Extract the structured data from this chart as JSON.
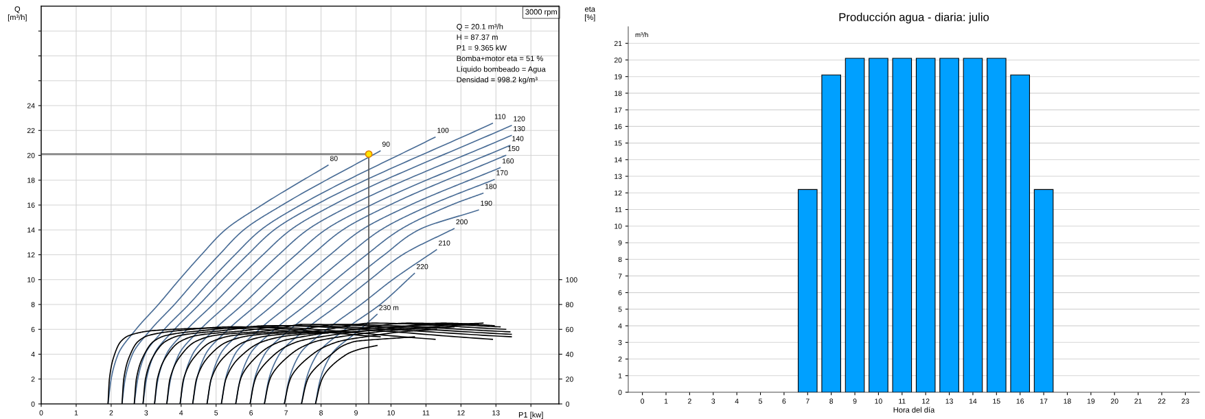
{
  "chart_data": [
    {
      "type": "line",
      "xlabel": "P1 [kw]",
      "ylabel": "Q\n[m³/h]",
      "y2label": "eta\n[%]",
      "xlim": [
        0,
        14.8
      ],
      "ylim": [
        0,
        32
      ],
      "y2lim": [
        0,
        320
      ],
      "xticks": [
        0,
        1,
        2,
        3,
        4,
        5,
        6,
        7,
        8,
        9,
        10,
        11,
        12,
        13,
        {
          "value": 14,
          "label": null
        }
      ],
      "yticks": [
        0,
        2,
        4,
        6,
        8,
        10,
        12,
        14,
        16,
        18,
        20,
        22,
        24,
        {
          "value": 26,
          "label": null
        },
        {
          "value": 28,
          "label": null
        },
        {
          "value": 30,
          "label": null
        }
      ],
      "y2ticks": [
        0,
        20,
        40,
        60,
        80,
        100
      ],
      "grid": true,
      "annotations": [
        "3000 rpm",
        "Q = 20.1 m³/h",
        "H = 87.37 m",
        "P1 = 9.365 kW",
        "Bomba+motor eta = 51 %",
        "Líquido bombeado = Agua",
        "Densidad = 998.2 kg/m³"
      ],
      "series": [
        {
          "name": "80",
          "color": "#4a6d96",
          "x": [
            1.91,
            2.0,
            2.2,
            2.71,
            3.35,
            3.95,
            4.58,
            5.26,
            6.31,
            8.2
          ],
          "values": [
            0,
            2,
            4,
            6,
            8,
            10,
            12,
            14,
            16,
            19.2
          ]
        },
        {
          "name": "90",
          "color": "#4a6d96",
          "x": [
            2.31,
            2.4,
            2.61,
            3.14,
            3.81,
            4.43,
            5.09,
            5.79,
            6.89,
            9.69
          ],
          "values": [
            0,
            2,
            4,
            6,
            8,
            10,
            12,
            14,
            16,
            20.35
          ]
        },
        {
          "name": "100",
          "color": "#4a6d96",
          "x": [
            2.66,
            2.76,
            2.97,
            3.52,
            4.22,
            4.86,
            5.54,
            6.28,
            7.41,
            11.26
          ],
          "values": [
            0,
            2,
            4,
            6,
            8,
            10,
            12,
            14,
            16,
            21.46
          ]
        },
        {
          "name": "110",
          "color": "#4a6d96",
          "x": [
            2.91,
            3.01,
            3.23,
            3.81,
            4.52,
            5.19,
            5.9,
            6.66,
            7.84,
            12.9
          ],
          "values": [
            0,
            2,
            4,
            6,
            8,
            10,
            12,
            14,
            16,
            22.57
          ]
        },
        {
          "name": "120",
          "color": "#4a6d96",
          "x": [
            3.24,
            3.34,
            3.58,
            4.17,
            4.91,
            5.61,
            6.34,
            7.13,
            8.34,
            13.44
          ],
          "values": [
            0,
            2,
            4,
            6,
            8,
            10,
            12,
            14,
            16,
            22.4
          ]
        },
        {
          "name": "130",
          "color": "#4a6d96",
          "x": [
            3.59,
            3.7,
            3.94,
            4.55,
            5.32,
            6.04,
            6.79,
            7.61,
            8.87,
            13.44
          ],
          "values": [
            0,
            2,
            4,
            6,
            8,
            10,
            12,
            14,
            16,
            21.6
          ]
        },
        {
          "name": "140",
          "color": "#4a6d96",
          "x": [
            3.97,
            4.08,
            4.33,
            4.96,
            5.76,
            6.5,
            7.28,
            8.12,
            9.43,
            13.4
          ],
          "values": [
            0,
            2,
            4,
            6,
            8,
            10,
            12,
            14,
            16,
            20.8
          ]
        },
        {
          "name": "150",
          "color": "#4a6d96",
          "x": [
            4.33,
            4.45,
            4.7,
            5.35,
            6.17,
            6.94,
            7.75,
            8.62,
            9.96,
            13.28
          ],
          "values": [
            0,
            2,
            4,
            6,
            8,
            10,
            12,
            14,
            16,
            20.0
          ]
        },
        {
          "name": "160",
          "color": "#4a6d96",
          "x": [
            4.74,
            4.86,
            5.12,
            5.8,
            6.64,
            7.43,
            8.26,
            9.16,
            10.55,
            13.12
          ],
          "values": [
            0,
            2,
            4,
            6,
            8,
            10,
            12,
            14,
            16,
            19.0
          ]
        },
        {
          "name": "170",
          "color": "#4a6d96",
          "x": [
            5.15,
            5.27,
            5.54,
            6.24,
            7.11,
            7.92,
            8.78,
            9.71,
            11.13,
            12.95
          ],
          "values": [
            0,
            2,
            4,
            6,
            8,
            10,
            12,
            14,
            16,
            18.05
          ]
        },
        {
          "name": "180",
          "color": "#4a6d96",
          "x": [
            5.56,
            5.69,
            5.97,
            6.68,
            7.58,
            8.42,
            9.3,
            10.25,
            11.72,
            12.63
          ],
          "values": [
            0,
            2,
            4,
            6,
            8,
            10,
            12,
            14,
            16,
            16.95
          ]
        },
        {
          "name": "190",
          "color": "#4a6d96",
          "x": [
            5.97,
            6.1,
            6.39,
            7.12,
            8.04,
            8.91,
            9.81,
            10.79,
            12.5
          ],
          "values": [
            0,
            2,
            4,
            6,
            8,
            10,
            12,
            14,
            15.6
          ]
        },
        {
          "name": "200",
          "color": "#4a6d96",
          "x": [
            6.38,
            6.51,
            6.81,
            7.56,
            8.51,
            9.4,
            10.33,
            11.8
          ],
          "values": [
            0,
            2,
            4,
            6,
            8,
            10,
            12,
            14.1
          ]
        },
        {
          "name": "210",
          "color": "#4a6d96",
          "x": [
            6.95,
            7.09,
            7.39,
            8.17,
            9.14,
            10.05,
            11.3
          ],
          "values": [
            0,
            2,
            4,
            6,
            8,
            10,
            12.4
          ]
        },
        {
          "name": "220",
          "color": "#4a6d96",
          "x": [
            7.44,
            7.58,
            7.89,
            8.69,
            9.69,
            10.67
          ],
          "values": [
            0,
            2,
            4,
            6,
            8,
            10.5
          ]
        },
        {
          "name": "230 m",
          "color": "#4a6d96",
          "x": [
            7.84,
            7.98,
            8.3,
            9.12,
            9.6
          ],
          "values": [
            0,
            2,
            4,
            6,
            7.2
          ]
        },
        {
          "axis": "y2",
          "color": "#000000",
          "x": [
            1.91,
            1.95,
            2.1,
            2.27,
            2.51,
            3.21,
            5.0,
            8.2
          ],
          "values": [
            0,
            20,
            40,
            50,
            55,
            59,
            61,
            57
          ]
        },
        {
          "axis": "y2",
          "color": "#000000",
          "x": [
            2.31,
            2.36,
            2.55,
            2.76,
            3.06,
            3.94,
            5.5,
            9.69
          ],
          "values": [
            0,
            20,
            40,
            50,
            55,
            59,
            62,
            54
          ]
        },
        {
          "axis": "y2",
          "color": "#000000",
          "x": [
            2.66,
            2.72,
            2.95,
            3.2,
            3.56,
            4.61,
            6.0,
            11.26
          ],
          "values": [
            0,
            20,
            40,
            50,
            55,
            59,
            62,
            52
          ]
        },
        {
          "axis": "y2",
          "color": "#000000",
          "x": [
            2.91,
            2.98,
            3.24,
            3.54,
            3.96,
            5.19,
            6.5,
            12.9
          ],
          "values": [
            0,
            20,
            40,
            50,
            55,
            59,
            63,
            52
          ]
        },
        {
          "axis": "y2",
          "color": "#000000",
          "x": [
            3.24,
            3.32,
            3.62,
            3.96,
            4.44,
            5.84,
            7.0,
            13.44
          ],
          "values": [
            0,
            20,
            40,
            50,
            55,
            59,
            63,
            54
          ]
        },
        {
          "axis": "y2",
          "color": "#000000",
          "x": [
            3.59,
            3.68,
            4.02,
            4.4,
            4.94,
            6.52,
            7.5,
            13.44
          ],
          "values": [
            0,
            20,
            40,
            50,
            55,
            59,
            64,
            56
          ]
        },
        {
          "axis": "y2",
          "color": "#000000",
          "x": [
            3.97,
            4.07,
            4.45,
            4.87,
            5.47,
            7.22,
            8.5,
            13.4
          ],
          "values": [
            0,
            20,
            40,
            50,
            55,
            59,
            64,
            58
          ]
        },
        {
          "axis": "y2",
          "color": "#000000",
          "x": [
            4.33,
            4.44,
            4.85,
            5.32,
            5.98,
            7.91,
            9.5,
            13.28
          ],
          "values": [
            0,
            20,
            40,
            50,
            55,
            59,
            65,
            60
          ]
        },
        {
          "axis": "y2",
          "color": "#000000",
          "x": [
            4.74,
            4.86,
            5.31,
            5.82,
            6.54,
            8.64,
            10.5,
            13.12
          ],
          "values": [
            0,
            20,
            40,
            50,
            55,
            59,
            65,
            62
          ]
        },
        {
          "axis": "y2",
          "color": "#000000",
          "x": [
            5.15,
            5.28,
            5.77,
            6.32,
            7.1,
            9.38,
            11.5,
            12.95
          ],
          "values": [
            0,
            20,
            40,
            50,
            55,
            59,
            65,
            63
          ]
        },
        {
          "axis": "y2",
          "color": "#000000",
          "x": [
            5.56,
            5.7,
            6.23,
            6.82,
            7.66,
            8.7,
            10.0,
            12.63
          ],
          "values": [
            0,
            20,
            40,
            50,
            55,
            59,
            62,
            65
          ]
        },
        {
          "axis": "y2",
          "color": "#000000",
          "x": [
            5.97,
            6.12,
            6.68,
            7.32,
            8.22,
            9.2,
            10.5,
            12.5
          ],
          "values": [
            0,
            20,
            40,
            50,
            55,
            58.5,
            61,
            64
          ]
        },
        {
          "axis": "y2",
          "color": "#000000",
          "x": [
            6.38,
            6.54,
            7.14,
            7.82,
            8.78,
            10.0,
            11.8
          ],
          "values": [
            0,
            20,
            40,
            50,
            55,
            59,
            62
          ]
        },
        {
          "axis": "y2",
          "color": "#000000",
          "x": [
            6.95,
            7.12,
            7.76,
            8.48,
            9.5,
            10.3,
            11.3
          ],
          "values": [
            0,
            20,
            40,
            50,
            55,
            58,
            60
          ]
        },
        {
          "axis": "y2",
          "color": "#000000",
          "x": [
            7.44,
            7.62,
            8.3,
            8.93,
            10.67
          ],
          "values": [
            0,
            20,
            40,
            50,
            54
          ]
        },
        {
          "axis": "y2",
          "color": "#000000",
          "x": [
            7.84,
            8.03,
            8.74,
            9.1,
            9.6
          ],
          "values": [
            0,
            20,
            40,
            44,
            47
          ]
        },
        {
          "color": "#555555",
          "x": [
            0,
            9.365,
            9.365
          ],
          "values": [
            20.1,
            20.1,
            0
          ]
        },
        {
          "type": "scatter",
          "marker": "circle",
          "color": "#ffe600",
          "x": [
            9.365
          ],
          "values": [
            20.1
          ]
        }
      ]
    },
    {
      "type": "bar",
      "title": "Producción agua - diaria: julio",
      "xlabel": "Hora del día",
      "ylabel": "m³/h",
      "color": "#00a0ff",
      "categories": [
        "0",
        "1",
        "2",
        "3",
        "4",
        "5",
        "6",
        "7",
        "8",
        "9",
        "10",
        "11",
        "12",
        "13",
        "14",
        "15",
        "16",
        "17",
        "18",
        "19",
        "20",
        "21",
        "22",
        "23"
      ],
      "values": [
        0,
        0,
        0,
        0,
        0,
        0,
        0,
        12.2,
        19.1,
        20.1,
        20.1,
        20.1,
        20.1,
        20.1,
        20.1,
        20.1,
        19.1,
        12.2,
        0,
        0,
        0,
        0,
        0,
        0
      ],
      "ylim": [
        0,
        22
      ],
      "yticks": [
        0,
        1,
        2,
        3,
        4,
        5,
        6,
        7,
        8,
        9,
        10,
        11,
        12,
        13,
        14,
        15,
        16,
        17,
        18,
        19,
        20,
        21
      ],
      "grid": "y"
    }
  ]
}
